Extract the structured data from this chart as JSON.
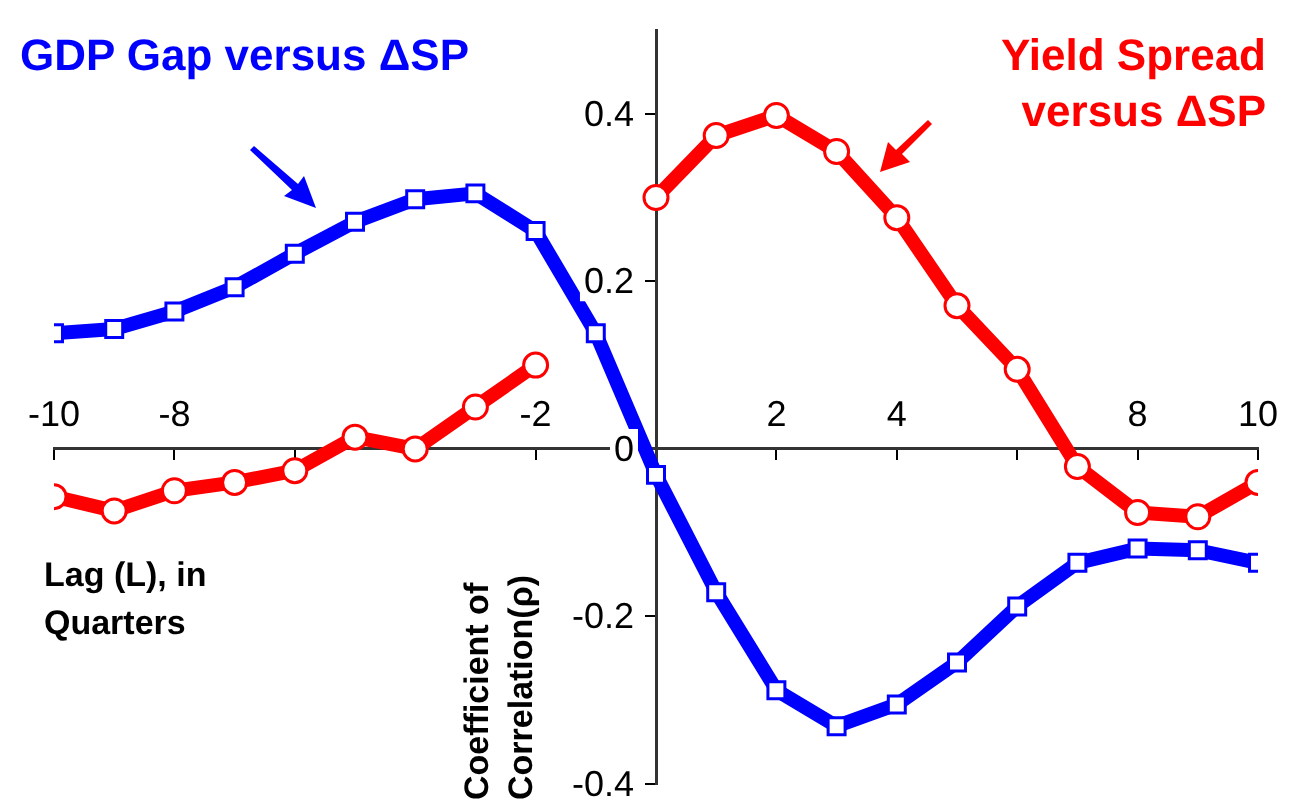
{
  "chart_data": {
    "type": "line",
    "xlabel": "Lag (L), in Quarters",
    "ylabel": "Coefficient of Correlation(ρ)",
    "x": [
      -10,
      -9,
      -8,
      -7,
      -6,
      -5,
      -4,
      -3,
      -2,
      -1,
      0,
      1,
      2,
      3,
      4,
      5,
      6,
      7,
      8,
      9,
      10
    ],
    "series": [
      {
        "name": "GDP Gap versus ΔSP",
        "color": "#0000ff",
        "marker": "square",
        "values": [
          0.138,
          0.143,
          0.164,
          0.193,
          0.233,
          0.271,
          0.298,
          0.305,
          0.26,
          0.138,
          -0.031,
          -0.171,
          -0.288,
          -0.331,
          -0.305,
          -0.255,
          -0.188,
          -0.136,
          -0.119,
          -0.121,
          -0.136
        ]
      },
      {
        "name": "Yield Spread versus ΔSP",
        "color": "#ff0000",
        "marker": "circle",
        "values": [
          -0.057,
          -0.074,
          -0.05,
          -0.04,
          -0.026,
          0.014,
          0,
          0.05,
          0.1,
          null,
          0.3,
          0.374,
          0.398,
          0.355,
          0.276,
          0.171,
          0.095,
          -0.021,
          -0.076,
          -0.081,
          -0.04
        ]
      }
    ],
    "xlim": [
      -10,
      10
    ],
    "xticks": [
      -10,
      -8,
      {
        "value": -6,
        "label": null
      },
      {
        "value": -4,
        "label": null
      },
      -2,
      {
        "value": 0,
        "label": null
      },
      2,
      4,
      {
        "value": 6,
        "label": null
      },
      8,
      10
    ],
    "ylim": [
      -0.4,
      0.5
    ],
    "yticks": [
      -0.4,
      -0.2,
      0,
      0.2,
      0.4
    ],
    "grid": false,
    "legend": false,
    "line_style": "solid"
  }
}
